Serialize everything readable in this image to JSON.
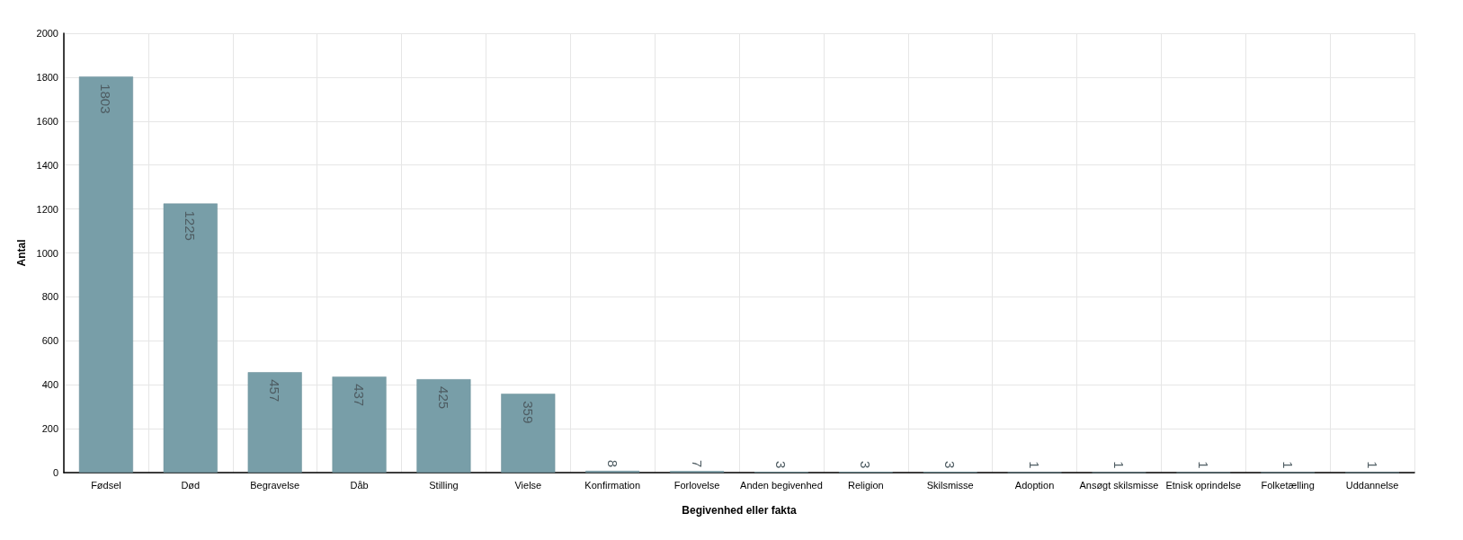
{
  "chart_data": {
    "type": "bar",
    "xlabel": "Begivenhed eller fakta",
    "ylabel": "Antal",
    "categories": [
      "Fødsel",
      "Død",
      "Begravelse",
      "Dåb",
      "Stilling",
      "Vielse",
      "Konfirmation",
      "Forlovelse",
      "Anden begivenhed",
      "Religion",
      "Skilsmisse",
      "Adoption",
      "Ansøgt skilsmisse",
      "Etnisk oprindelse",
      "Folketælling",
      "Uddannelse"
    ],
    "values": [
      1803,
      1225,
      457,
      437,
      425,
      359,
      8,
      7,
      3,
      3,
      3,
      1,
      1,
      1,
      1,
      1
    ],
    "color": "#789ea8",
    "ylim": [
      0,
      2000
    ],
    "yticks": [
      0,
      200,
      400,
      600,
      800,
      1000,
      1200,
      1400,
      1600,
      1800,
      2000
    ],
    "grid": true,
    "data_labels": true
  }
}
